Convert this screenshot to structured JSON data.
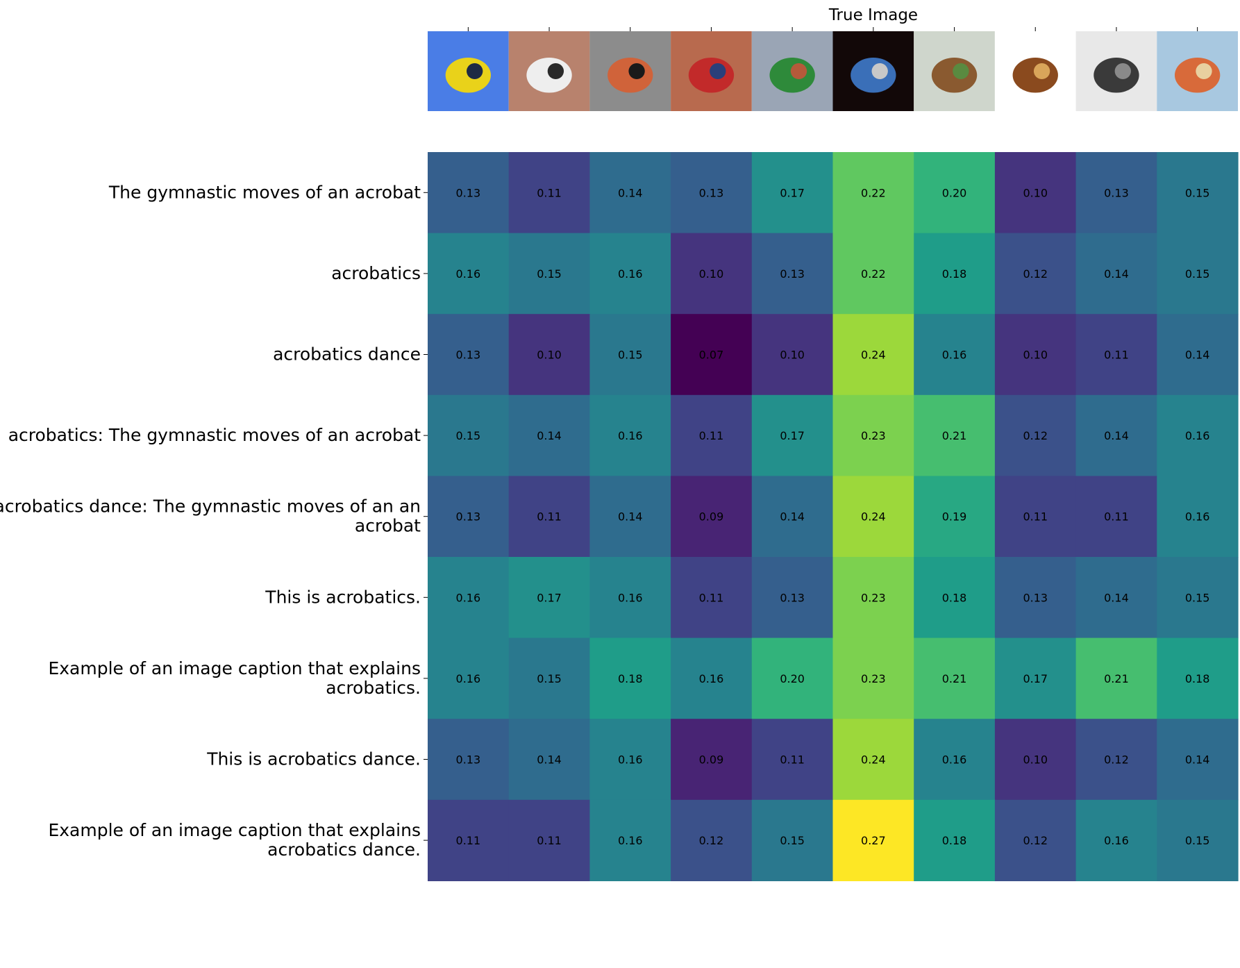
{
  "chart_data": {
    "type": "heatmap",
    "title": "True Image",
    "colormap": "viridis",
    "color_range": [
      0.07,
      0.27
    ],
    "columns": [
      {
        "icon": "yellow-airplane-photo",
        "colors": [
          "#4a7de6",
          "#e9d21a",
          "#1f2a44"
        ]
      },
      {
        "icon": "baseball-players-photo",
        "colors": [
          "#b8826d",
          "#eeeeee",
          "#2a2a2a"
        ]
      },
      {
        "icon": "greek-amphora-vase-photo",
        "colors": [
          "#8c8c8c",
          "#d0633a",
          "#1a1a1a"
        ]
      },
      {
        "icon": "track-runners-photo",
        "colors": [
          "#b86a4e",
          "#c22a2a",
          "#2a3f7a"
        ]
      },
      {
        "icon": "stadium-photo",
        "colors": [
          "#9aa5b5",
          "#2e8a3a",
          "#b55a3a"
        ]
      },
      {
        "icon": "acrobat-dancer-photo",
        "colors": [
          "#120808",
          "#3a6fb8",
          "#c8c8c8"
        ]
      },
      {
        "icon": "horse-jumping-photo",
        "colors": [
          "#cfd6cc",
          "#8a5a30",
          "#5a8a40"
        ]
      },
      {
        "icon": "rocking-horse-toy-photo",
        "colors": [
          "#ffffff",
          "#8a4a1e",
          "#d9a55a"
        ]
      },
      {
        "icon": "vintage-newspaper-photo",
        "colors": [
          "#e8e8e8",
          "#3a3a3a",
          "#8a8a8a"
        ]
      },
      {
        "icon": "carousel-photo",
        "colors": [
          "#a8c8e0",
          "#d86a3a",
          "#e8d0a0"
        ]
      }
    ],
    "rows": [
      [
        "The gymnastic moves of an acrobat"
      ],
      [
        "acrobatics"
      ],
      [
        "acrobatics dance"
      ],
      [
        "acrobatics: The gymnastic moves of an acrobat"
      ],
      [
        "acrobatics dance: The gymnastic moves of an an",
        "acrobat"
      ],
      [
        "This is acrobatics."
      ],
      [
        "Example of an image caption that explains",
        "acrobatics."
      ],
      [
        "This is acrobatics dance."
      ],
      [
        "Example of an image caption that explains",
        "acrobatics dance."
      ]
    ],
    "values": [
      [
        0.13,
        0.11,
        0.14,
        0.13,
        0.17,
        0.22,
        0.2,
        0.1,
        0.13,
        0.15
      ],
      [
        0.16,
        0.15,
        0.16,
        0.1,
        0.13,
        0.22,
        0.18,
        0.12,
        0.14,
        0.15
      ],
      [
        0.13,
        0.1,
        0.15,
        0.07,
        0.1,
        0.24,
        0.16,
        0.1,
        0.11,
        0.14
      ],
      [
        0.15,
        0.14,
        0.16,
        0.11,
        0.17,
        0.23,
        0.21,
        0.12,
        0.14,
        0.16
      ],
      [
        0.13,
        0.11,
        0.14,
        0.09,
        0.14,
        0.24,
        0.19,
        0.11,
        0.11,
        0.16
      ],
      [
        0.16,
        0.17,
        0.16,
        0.11,
        0.13,
        0.23,
        0.18,
        0.13,
        0.14,
        0.15
      ],
      [
        0.16,
        0.15,
        0.18,
        0.16,
        0.2,
        0.23,
        0.21,
        0.17,
        0.21,
        0.18
      ],
      [
        0.13,
        0.14,
        0.16,
        0.09,
        0.11,
        0.24,
        0.16,
        0.1,
        0.12,
        0.14
      ],
      [
        0.11,
        0.11,
        0.16,
        0.12,
        0.15,
        0.27,
        0.18,
        0.12,
        0.16,
        0.15
      ]
    ]
  }
}
